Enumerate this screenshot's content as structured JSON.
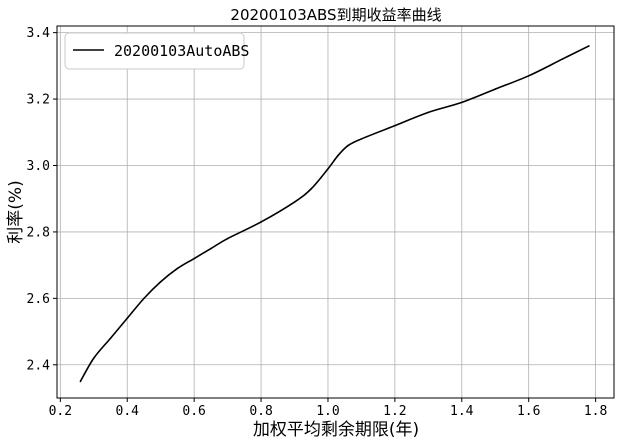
{
  "chart_data": {
    "type": "line",
    "title": "20200103ABS到期收益率曲线",
    "xlabel": "加权平均剩余期限(年)",
    "ylabel": "利率(%)",
    "xlim": [
      0.19,
      1.855
    ],
    "ylim": [
      2.3,
      3.42
    ],
    "xticks": [
      0.2,
      0.4,
      0.6,
      0.8,
      1.0,
      1.2,
      1.4,
      1.6,
      1.8
    ],
    "xtick_labels": [
      "0.2",
      "0.4",
      "0.6",
      "0.8",
      "1.0",
      "1.2",
      "1.4",
      "1.6",
      "1.8"
    ],
    "yticks": [
      2.4,
      2.6,
      2.8,
      3.0,
      3.2,
      3.4
    ],
    "ytick_labels": [
      "2.4",
      "2.6",
      "2.8",
      "3.0",
      "3.2",
      "3.4"
    ],
    "grid": true,
    "legend_position": "upper-left",
    "series": [
      {
        "name": "20200103AutoABS",
        "color": "#000000",
        "x": [
          0.26,
          0.3,
          0.35,
          0.4,
          0.45,
          0.5,
          0.55,
          0.6,
          0.65,
          0.7,
          0.8,
          0.9,
          0.95,
          1.0,
          1.03,
          1.06,
          1.1,
          1.2,
          1.3,
          1.4,
          1.5,
          1.6,
          1.7,
          1.78
        ],
        "y": [
          2.35,
          2.42,
          2.48,
          2.54,
          2.6,
          2.65,
          2.69,
          2.72,
          2.75,
          2.78,
          2.83,
          2.89,
          2.93,
          2.99,
          3.03,
          3.06,
          3.08,
          3.12,
          3.16,
          3.19,
          3.23,
          3.27,
          3.32,
          3.36
        ]
      }
    ]
  }
}
